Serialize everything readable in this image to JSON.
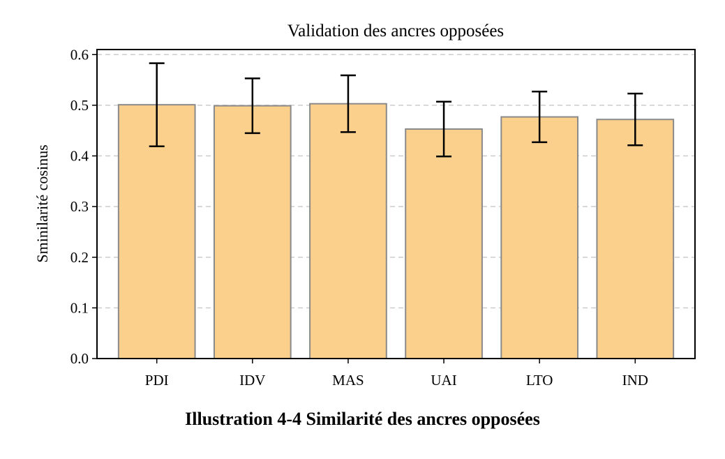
{
  "caption": "Illustration 4-4 Similarité des ancres opposées",
  "chart_data": {
    "type": "bar",
    "title": "Validation des ancres opposées",
    "xlabel": "",
    "ylabel": "Sminilarité cosinus",
    "categories": [
      "PDI",
      "IDV",
      "MAS",
      "UAI",
      "LTO",
      "IND"
    ],
    "values": [
      0.501,
      0.499,
      0.503,
      0.453,
      0.477,
      0.472
    ],
    "error_low": [
      0.419,
      0.445,
      0.447,
      0.399,
      0.427,
      0.421
    ],
    "error_high": [
      0.583,
      0.553,
      0.559,
      0.507,
      0.527,
      0.523
    ],
    "ylim": [
      0,
      0.61
    ],
    "yticks": [
      0.0,
      0.1,
      0.2,
      0.3,
      0.4,
      0.5,
      0.6
    ],
    "ytick_labels": [
      "0.0",
      "0.1",
      "0.2",
      "0.3",
      "0.4",
      "0.5",
      "0.6"
    ],
    "grid": "horizontal-dashed",
    "colors": {
      "bar_fill": "#fbd08c",
      "bar_edge": "#8a8a8a",
      "error_bar": "#000000",
      "grid": "#cccccc"
    }
  }
}
